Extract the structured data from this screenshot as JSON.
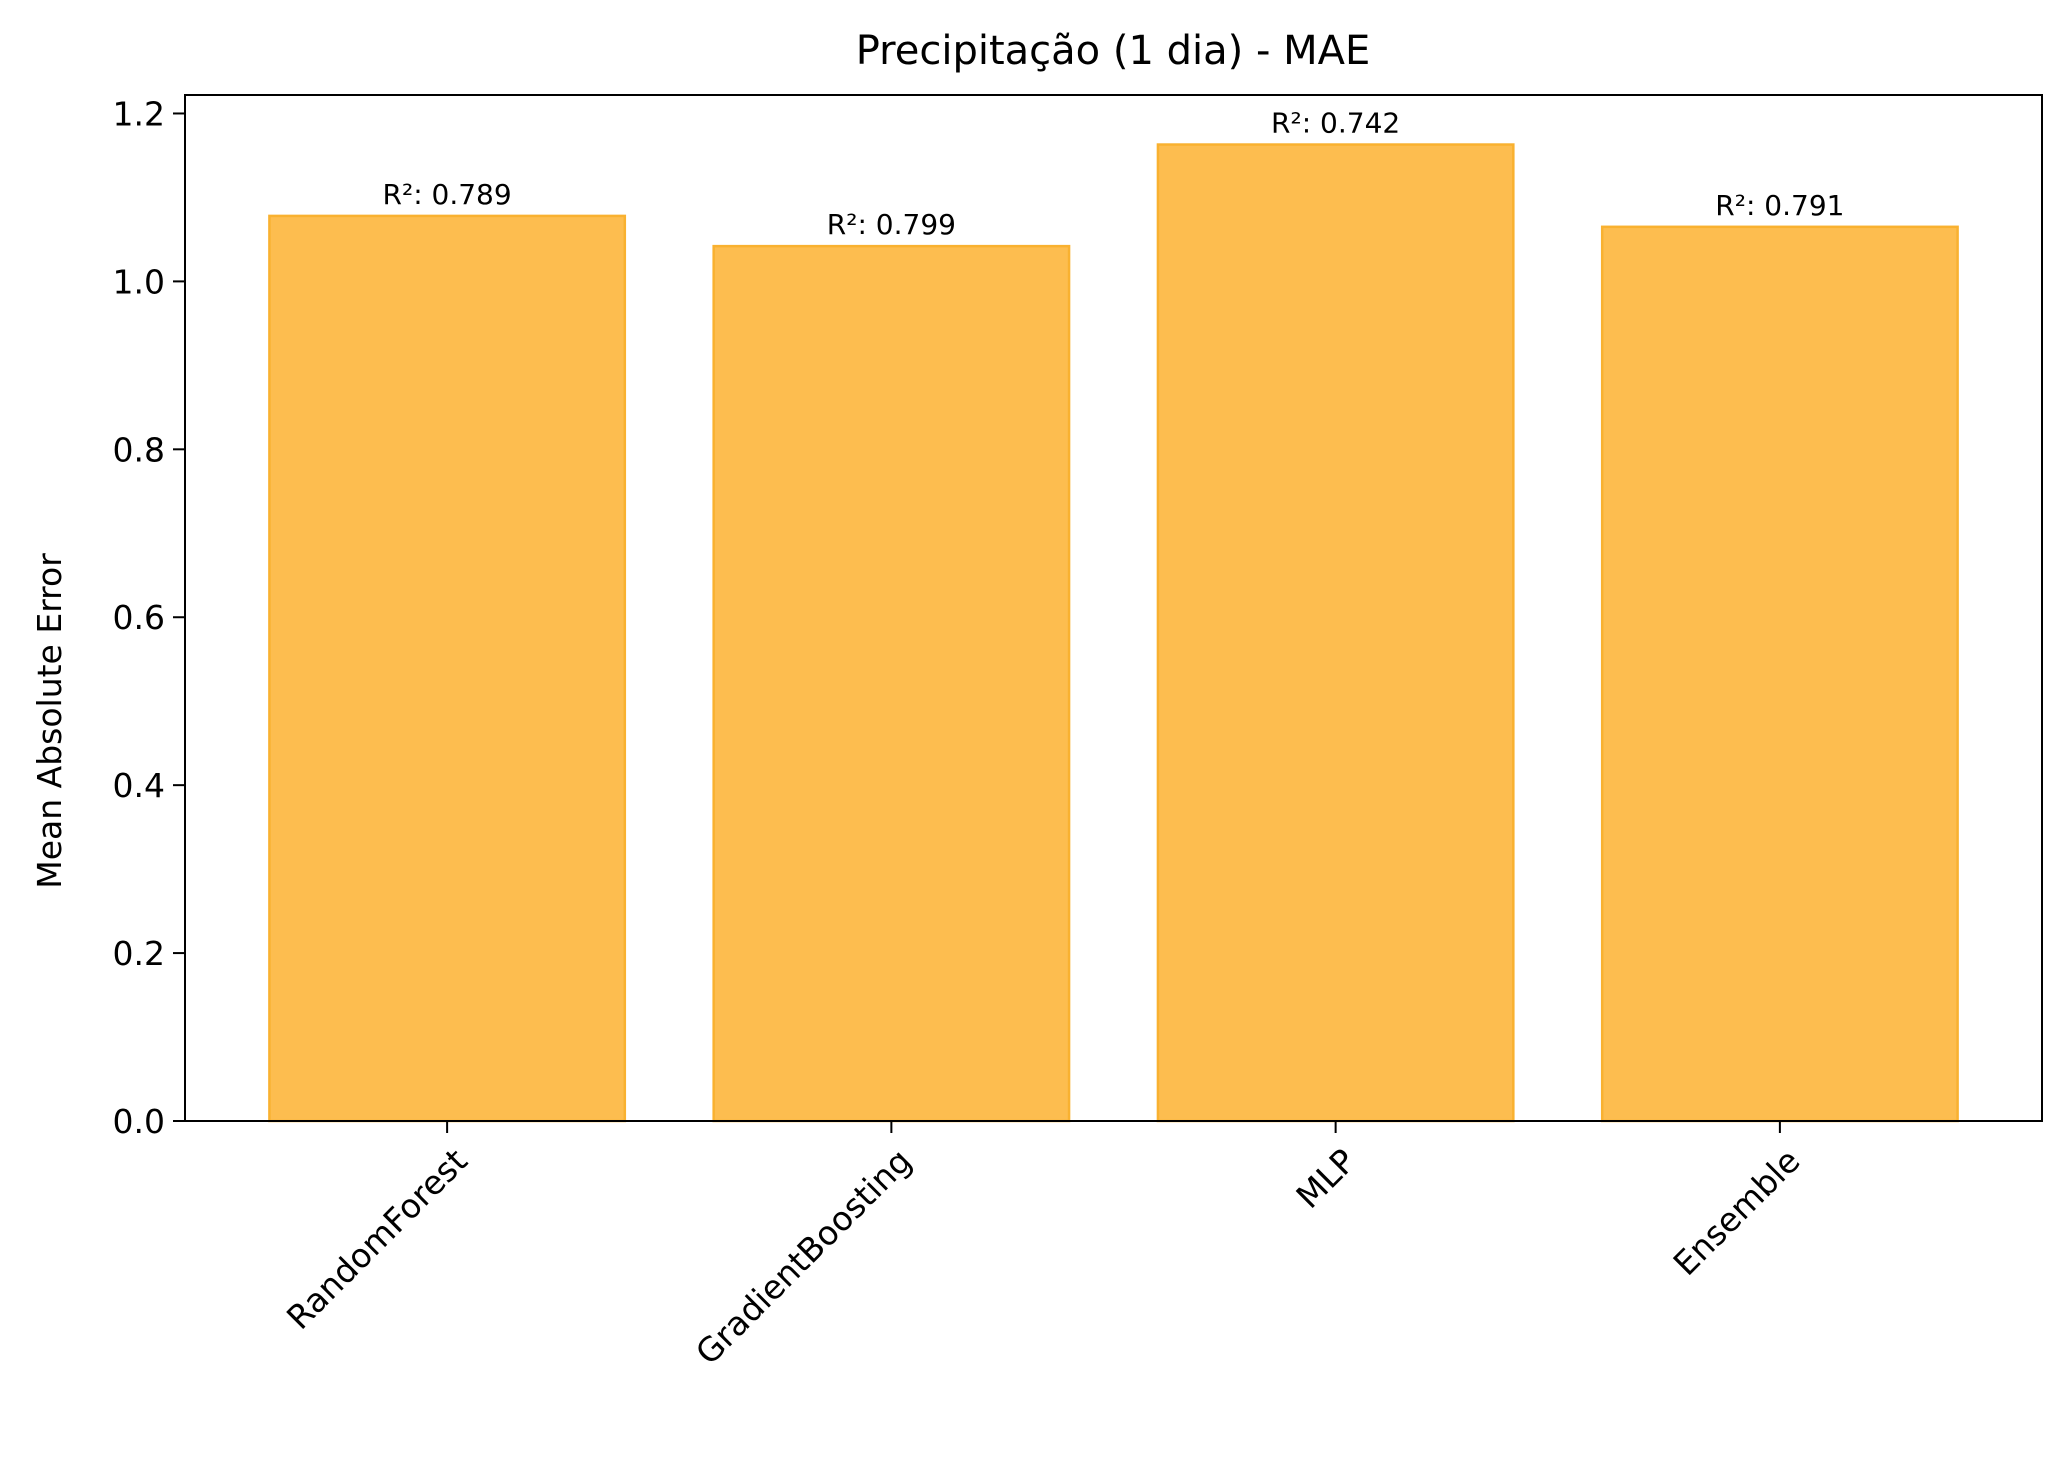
{
  "chart_data": {
    "type": "bar",
    "title": "Precipitação (1 dia) - MAE",
    "xlabel": "",
    "ylabel": "Mean Absolute Error",
    "categories": [
      "RandomForest",
      "GradientBoosting",
      "MLP",
      "Ensemble"
    ],
    "values": [
      1.078,
      1.042,
      1.163,
      1.065
    ],
    "bar_labels": [
      "R²: 0.789",
      "R²: 0.799",
      "R²: 0.742",
      "R²: 0.791"
    ],
    "ylim": [
      0,
      1.222
    ],
    "yticks": [
      0.0,
      0.2,
      0.4,
      0.6,
      0.8,
      1.0,
      1.2
    ],
    "ytick_labels": [
      "0.0",
      "0.2",
      "0.4",
      "0.6",
      "0.8",
      "1.0",
      "1.2"
    ],
    "grid": false,
    "legend": "none",
    "colors": {
      "bar_fill": "#FDBD4F",
      "bar_edge": "#F9B130",
      "axes": "#000000"
    }
  }
}
